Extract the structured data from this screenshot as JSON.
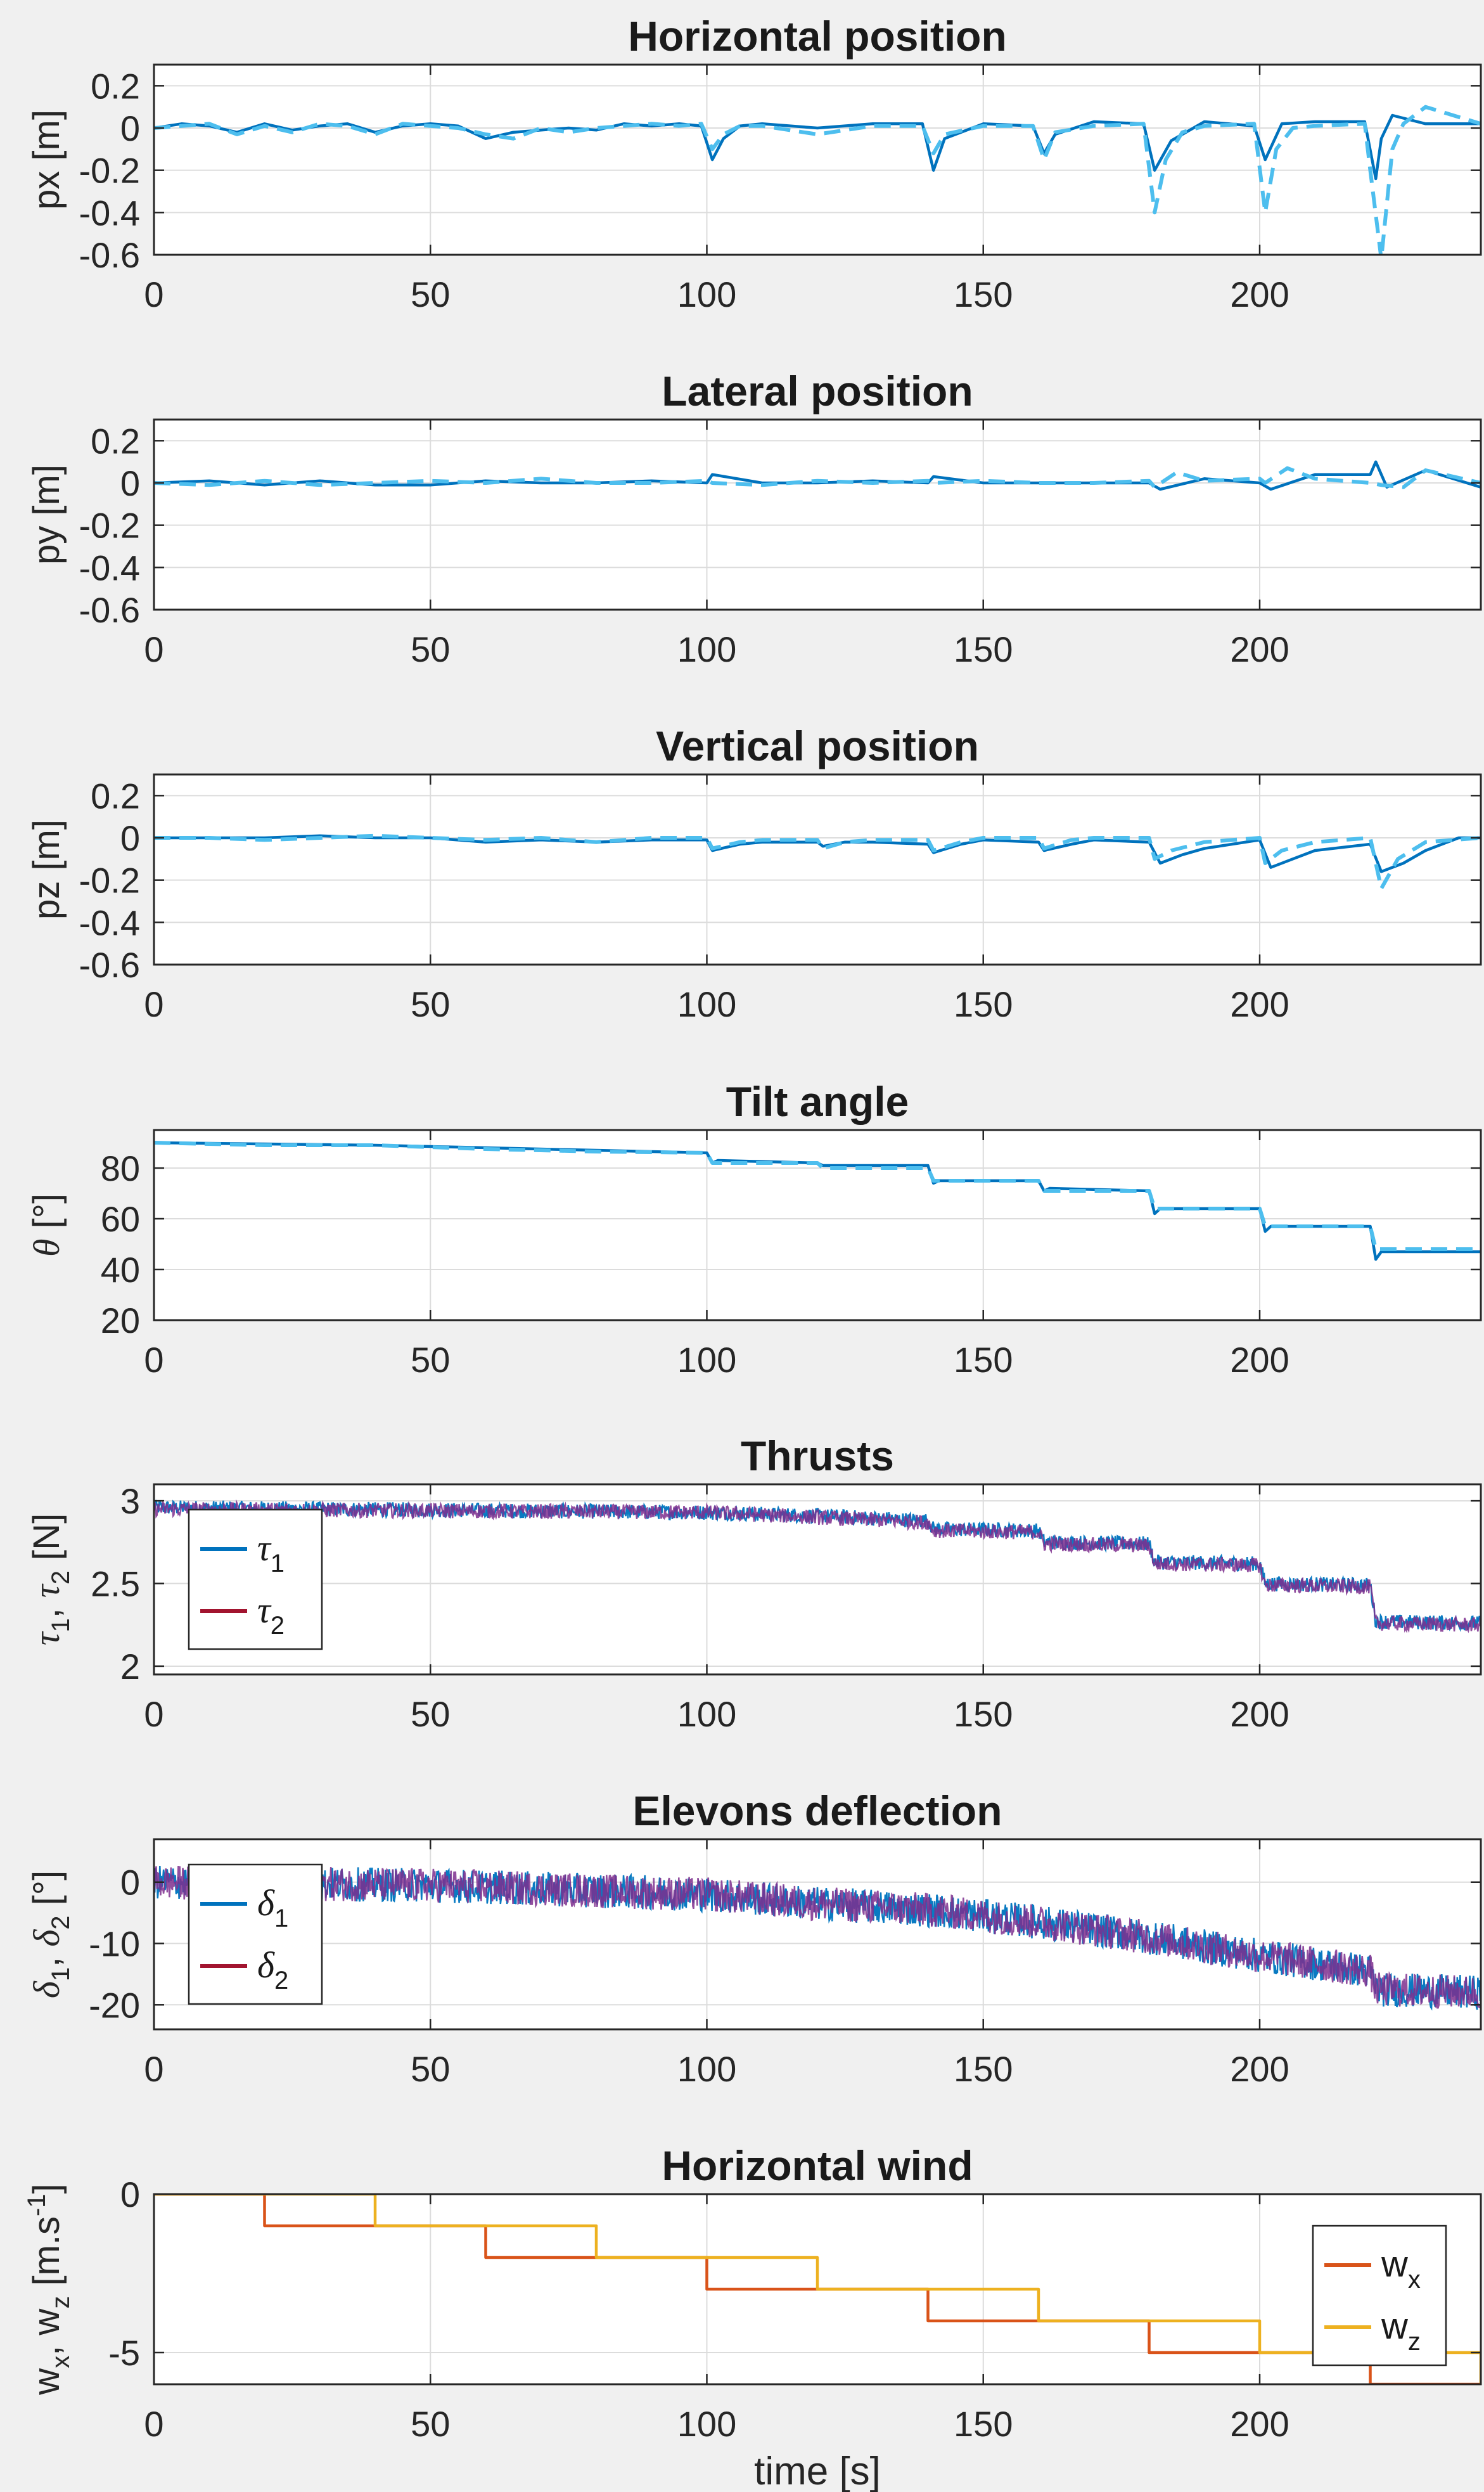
{
  "colors": {
    "measured": "#0072BD",
    "reference": "#4DBEEE",
    "tau2": "#A2142F",
    "overlap": "#7E2F8E",
    "wx": "#D95319",
    "wz": "#EDB120",
    "grid": "#dcdcdc",
    "axes_bg": "#ffffff",
    "figure_bg": "#f0f0f0"
  },
  "chart_data": [
    {
      "type": "line",
      "title": "Horizontal position",
      "ylabel": "px [m]",
      "xlabel": "",
      "xlim": [
        0,
        240
      ],
      "ylim": [
        -0.6,
        0.3
      ],
      "xticks": [
        0,
        50,
        100,
        150,
        200
      ],
      "yticks": [
        -0.6,
        -0.4,
        -0.2,
        0,
        0.2
      ],
      "ytick_labels": [
        "-0.6",
        "-0.4",
        "-0.2",
        "0",
        "0.2"
      ],
      "grid": true,
      "series": [
        {
          "role": "measured",
          "style": "solid",
          "x": [
            0,
            5,
            10,
            15,
            20,
            25,
            30,
            35,
            40,
            45,
            50,
            55,
            60,
            65,
            70,
            75,
            80,
            85,
            90,
            95,
            99,
            101,
            103,
            106,
            110,
            120,
            130,
            139,
            141,
            143,
            150,
            159,
            161,
            163,
            170,
            179,
            181,
            184,
            190,
            199,
            201,
            204,
            210,
            219,
            221,
            222,
            224,
            230,
            240
          ],
          "y": [
            0,
            0.02,
            0.01,
            -0.02,
            0.02,
            -0.01,
            0.01,
            0.02,
            -0.02,
            0.01,
            0.02,
            0.01,
            -0.05,
            -0.02,
            -0.01,
            0,
            -0.01,
            0.02,
            0.01,
            0.02,
            0.01,
            -0.15,
            -0.05,
            0.01,
            0.02,
            0,
            0.02,
            0.02,
            -0.2,
            -0.05,
            0.02,
            0.01,
            -0.12,
            -0.03,
            0.03,
            0.02,
            -0.2,
            -0.06,
            0.03,
            0.01,
            -0.15,
            0.02,
            0.03,
            0.03,
            -0.24,
            -0.05,
            0.06,
            0.02,
            0.02
          ]
        },
        {
          "role": "reference",
          "style": "dashed",
          "x": [
            0,
            5,
            10,
            15,
            20,
            25,
            30,
            35,
            40,
            45,
            50,
            55,
            60,
            65,
            70,
            75,
            80,
            85,
            90,
            95,
            99,
            101,
            103,
            106,
            110,
            120,
            130,
            139,
            141,
            143,
            150,
            159,
            161,
            163,
            170,
            179,
            181,
            183,
            186,
            190,
            199,
            201,
            203,
            206,
            210,
            219,
            220,
            222,
            224,
            226,
            230,
            240
          ],
          "y": [
            0,
            0.01,
            0.02,
            -0.03,
            0.01,
            -0.02,
            0.02,
            0.01,
            -0.03,
            0.02,
            0.01,
            0,
            -0.03,
            -0.05,
            0,
            -0.02,
            0,
            0.01,
            0.02,
            0.01,
            0.02,
            -0.1,
            -0.03,
            0.01,
            0.01,
            -0.03,
            0.01,
            0.01,
            -0.12,
            -0.03,
            0.01,
            0.01,
            -0.15,
            -0.02,
            0.01,
            0.02,
            -0.4,
            -0.15,
            -0.02,
            0.01,
            0.02,
            -0.4,
            -0.1,
            0,
            0.01,
            0.02,
            -0.2,
            -0.62,
            -0.1,
            0.02,
            0.1,
            0.02
          ]
        }
      ]
    },
    {
      "type": "line",
      "title": "Lateral position",
      "ylabel": "py [m]",
      "xlabel": "",
      "xlim": [
        0,
        240
      ],
      "ylim": [
        -0.6,
        0.3
      ],
      "xticks": [
        0,
        50,
        100,
        150,
        200
      ],
      "yticks": [
        -0.6,
        -0.4,
        -0.2,
        0,
        0.2
      ],
      "ytick_labels": [
        "-0.6",
        "-0.4",
        "-0.2",
        "0",
        "0.2"
      ],
      "grid": true,
      "series": [
        {
          "role": "measured",
          "style": "solid",
          "x": [
            0,
            10,
            20,
            30,
            40,
            50,
            60,
            70,
            80,
            90,
            100,
            101,
            110,
            120,
            130,
            140,
            141,
            150,
            160,
            170,
            180,
            182,
            190,
            200,
            202,
            210,
            220,
            221,
            223,
            230,
            240
          ],
          "y": [
            0,
            0.01,
            -0.01,
            0.01,
            -0.01,
            -0.01,
            0.01,
            0,
            0,
            0.01,
            0,
            0.04,
            0,
            0,
            0.01,
            0,
            0.03,
            0,
            0,
            0,
            0,
            -0.03,
            0.02,
            0,
            -0.03,
            0.04,
            0.04,
            0.1,
            -0.02,
            0.06,
            -0.02
          ]
        },
        {
          "role": "reference",
          "style": "dashed",
          "x": [
            0,
            10,
            20,
            30,
            40,
            50,
            60,
            70,
            80,
            90,
            100,
            101,
            110,
            120,
            130,
            140,
            141,
            150,
            160,
            170,
            180,
            181,
            185,
            190,
            200,
            201,
            205,
            210,
            220,
            222,
            226,
            230,
            240
          ],
          "y": [
            0,
            -0.01,
            0.01,
            -0.01,
            0,
            0.01,
            0,
            0.02,
            0,
            0,
            0.01,
            0,
            -0.01,
            0.01,
            0,
            0.01,
            0,
            0.01,
            0,
            0,
            0.01,
            -0.02,
            0.05,
            0.01,
            0.02,
            0,
            0.07,
            0.02,
            0,
            -0.01,
            -0.02,
            0.06,
            0
          ]
        }
      ]
    },
    {
      "type": "line",
      "title": "Vertical position",
      "ylabel": "pz [m]",
      "xlabel": "",
      "xlim": [
        0,
        240
      ],
      "ylim": [
        -0.6,
        0.3
      ],
      "xticks": [
        0,
        50,
        100,
        150,
        200
      ],
      "yticks": [
        -0.6,
        -0.4,
        -0.2,
        0,
        0.2
      ],
      "ytick_labels": [
        "-0.6",
        "-0.4",
        "-0.2",
        "0",
        "0.2"
      ],
      "grid": true,
      "series": [
        {
          "role": "measured",
          "style": "solid",
          "x": [
            0,
            10,
            20,
            30,
            40,
            50,
            60,
            70,
            80,
            90,
            100,
            101,
            106,
            110,
            120,
            121,
            125,
            130,
            140,
            141,
            146,
            150,
            160,
            161,
            166,
            170,
            180,
            182,
            186,
            190,
            200,
            202,
            206,
            210,
            220,
            222,
            226,
            230,
            236,
            240
          ],
          "y": [
            0,
            0,
            0,
            0.01,
            0,
            0,
            -0.02,
            -0.01,
            -0.02,
            -0.01,
            -0.01,
            -0.06,
            -0.03,
            -0.02,
            -0.02,
            -0.04,
            -0.02,
            -0.02,
            -0.03,
            -0.07,
            -0.03,
            -0.01,
            -0.02,
            -0.06,
            -0.03,
            -0.01,
            -0.02,
            -0.12,
            -0.08,
            -0.05,
            -0.01,
            -0.14,
            -0.1,
            -0.06,
            -0.03,
            -0.16,
            -0.12,
            -0.06,
            0,
            0
          ]
        },
        {
          "role": "reference",
          "style": "dashed",
          "x": [
            0,
            10,
            20,
            30,
            40,
            50,
            60,
            70,
            80,
            90,
            100,
            101,
            106,
            110,
            120,
            121,
            125,
            130,
            140,
            141,
            146,
            150,
            160,
            161,
            166,
            170,
            180,
            181,
            184,
            190,
            200,
            201,
            204,
            210,
            220,
            222,
            225,
            230,
            240
          ],
          "y": [
            0,
            0,
            -0.01,
            0,
            0.01,
            0,
            -0.01,
            0,
            -0.02,
            0,
            0,
            -0.05,
            -0.02,
            -0.01,
            -0.01,
            -0.05,
            -0.02,
            -0.01,
            -0.01,
            -0.06,
            -0.02,
            0,
            0,
            -0.05,
            -0.01,
            0,
            0,
            -0.1,
            -0.06,
            -0.02,
            0,
            -0.12,
            -0.06,
            -0.02,
            0,
            -0.24,
            -0.1,
            -0.02,
            0
          ]
        }
      ]
    },
    {
      "type": "line",
      "title": "Tilt angle",
      "ylabel": "θ [°]",
      "xlabel": "",
      "xlim": [
        0,
        240
      ],
      "ylim": [
        20,
        95
      ],
      "xticks": [
        0,
        50,
        100,
        150,
        200
      ],
      "yticks": [
        20,
        40,
        60,
        80
      ],
      "ytick_labels": [
        "20",
        "40",
        "60",
        "80"
      ],
      "grid": true,
      "series": [
        {
          "role": "measured",
          "style": "solid",
          "x": [
            0,
            20,
            40,
            60,
            80,
            100,
            101,
            102,
            120,
            121,
            140,
            141,
            142,
            160,
            161,
            162,
            180,
            181,
            182,
            200,
            201,
            202,
            220,
            221,
            222,
            240
          ],
          "y": [
            90,
            89.5,
            89,
            88,
            87,
            86,
            82,
            83,
            82,
            81,
            81,
            74,
            75,
            75,
            71,
            72,
            71,
            62,
            64,
            64,
            55,
            57,
            57,
            44,
            47,
            47
          ]
        },
        {
          "role": "reference",
          "style": "dashed",
          "x": [
            0,
            20,
            40,
            60,
            80,
            100,
            101,
            120,
            121,
            140,
            141,
            160,
            161,
            180,
            181,
            200,
            201,
            220,
            221,
            240
          ],
          "y": [
            90,
            89,
            89,
            87.5,
            86.5,
            86,
            82,
            82,
            80,
            80,
            75,
            75,
            71,
            71,
            64,
            64,
            57,
            57,
            48,
            48
          ]
        }
      ]
    },
    {
      "type": "line",
      "title": "Thrusts",
      "ylabel": "τ1, τ2 [N]",
      "xlabel": "",
      "xlim": [
        0,
        240
      ],
      "ylim": [
        1.95,
        3.1
      ],
      "xticks": [
        0,
        50,
        100,
        150,
        200
      ],
      "yticks": [
        2,
        2.5,
        3
      ],
      "ytick_labels": [
        "2",
        "2.5",
        "3"
      ],
      "grid": true,
      "legend": {
        "position": "west",
        "entries": [
          {
            "base": "τ",
            "sub": "1",
            "color_key": "measured"
          },
          {
            "base": "τ",
            "sub": "2",
            "color_key": "tau2"
          }
        ]
      },
      "noisy_series": [
        {
          "name": "τ1",
          "color_key": "measured",
          "noise": 0.045,
          "mean_x": [
            0,
            100,
            120,
            140,
            141,
            160,
            161,
            180,
            181,
            200,
            201,
            220,
            221,
            240
          ],
          "mean_y": [
            2.96,
            2.93,
            2.91,
            2.88,
            2.83,
            2.82,
            2.75,
            2.74,
            2.63,
            2.62,
            2.5,
            2.49,
            2.27,
            2.26
          ]
        },
        {
          "name": "τ2",
          "color_key": "tau2",
          "noise": 0.045,
          "mean_x": [
            0,
            100,
            120,
            140,
            141,
            160,
            161,
            180,
            181,
            200,
            201,
            220,
            221,
            240
          ],
          "mean_y": [
            2.95,
            2.93,
            2.9,
            2.87,
            2.82,
            2.81,
            2.74,
            2.73,
            2.62,
            2.61,
            2.49,
            2.48,
            2.26,
            2.25
          ]
        }
      ]
    },
    {
      "type": "line",
      "title": "Elevons deflection",
      "ylabel": "δ1, δ2 [°]",
      "xlabel": "",
      "xlim": [
        0,
        240
      ],
      "ylim": [
        -24,
        7
      ],
      "xticks": [
        0,
        50,
        100,
        150,
        200
      ],
      "yticks": [
        -20,
        -10,
        0
      ],
      "ytick_labels": [
        "-20",
        "-10",
        "0"
      ],
      "grid": true,
      "legend": {
        "position": "west",
        "entries": [
          {
            "base": "δ",
            "sub": "1",
            "color_key": "measured"
          },
          {
            "base": "δ",
            "sub": "2",
            "color_key": "tau2"
          }
        ]
      },
      "noisy_series": [
        {
          "name": "δ1",
          "color_key": "measured",
          "noise": 2.8,
          "mean_x": [
            0,
            50,
            100,
            120,
            140,
            160,
            180,
            200,
            220,
            221,
            240
          ],
          "mean_y": [
            0,
            -0.5,
            -2,
            -3.5,
            -4.5,
            -6.5,
            -9,
            -12,
            -14.5,
            -17.5,
            -18
          ]
        },
        {
          "name": "δ2",
          "color_key": "tau2",
          "noise": 2.8,
          "mean_x": [
            0,
            50,
            100,
            120,
            140,
            160,
            180,
            200,
            220,
            221,
            240
          ],
          "mean_y": [
            0,
            -0.5,
            -2,
            -3.5,
            -4.5,
            -6.5,
            -9,
            -12,
            -14.5,
            -17.5,
            -18
          ]
        }
      ]
    },
    {
      "type": "line",
      "title": "Horizontal wind",
      "ylabel": "w_x, w_z [m.s^-1]",
      "xlabel": "time [s]",
      "xlim": [
        0,
        240
      ],
      "ylim": [
        -6,
        0
      ],
      "xticks": [
        0,
        50,
        100,
        150,
        200
      ],
      "yticks": [
        -5,
        0
      ],
      "ytick_labels": [
        "-5",
        "0"
      ],
      "grid": true,
      "legend": {
        "position": "east",
        "entries": [
          {
            "base": "w",
            "sub": "x",
            "color_key": "wx"
          },
          {
            "base": "w",
            "sub": "z",
            "color_key": "wz"
          }
        ]
      },
      "series": [
        {
          "name": "w_x",
          "color_key": "wx",
          "style": "step",
          "x": [
            0,
            20,
            60,
            100,
            140,
            180,
            220,
            240
          ],
          "y": [
            0,
            -1,
            -2,
            -3,
            -4,
            -5,
            -6,
            -6
          ]
        },
        {
          "name": "w_z",
          "color_key": "wz",
          "style": "step",
          "x": [
            0,
            40,
            80,
            120,
            160,
            200,
            240,
            240
          ],
          "y": [
            0,
            -1,
            -2,
            -3,
            -4,
            -5,
            -6,
            -6
          ]
        }
      ]
    }
  ]
}
